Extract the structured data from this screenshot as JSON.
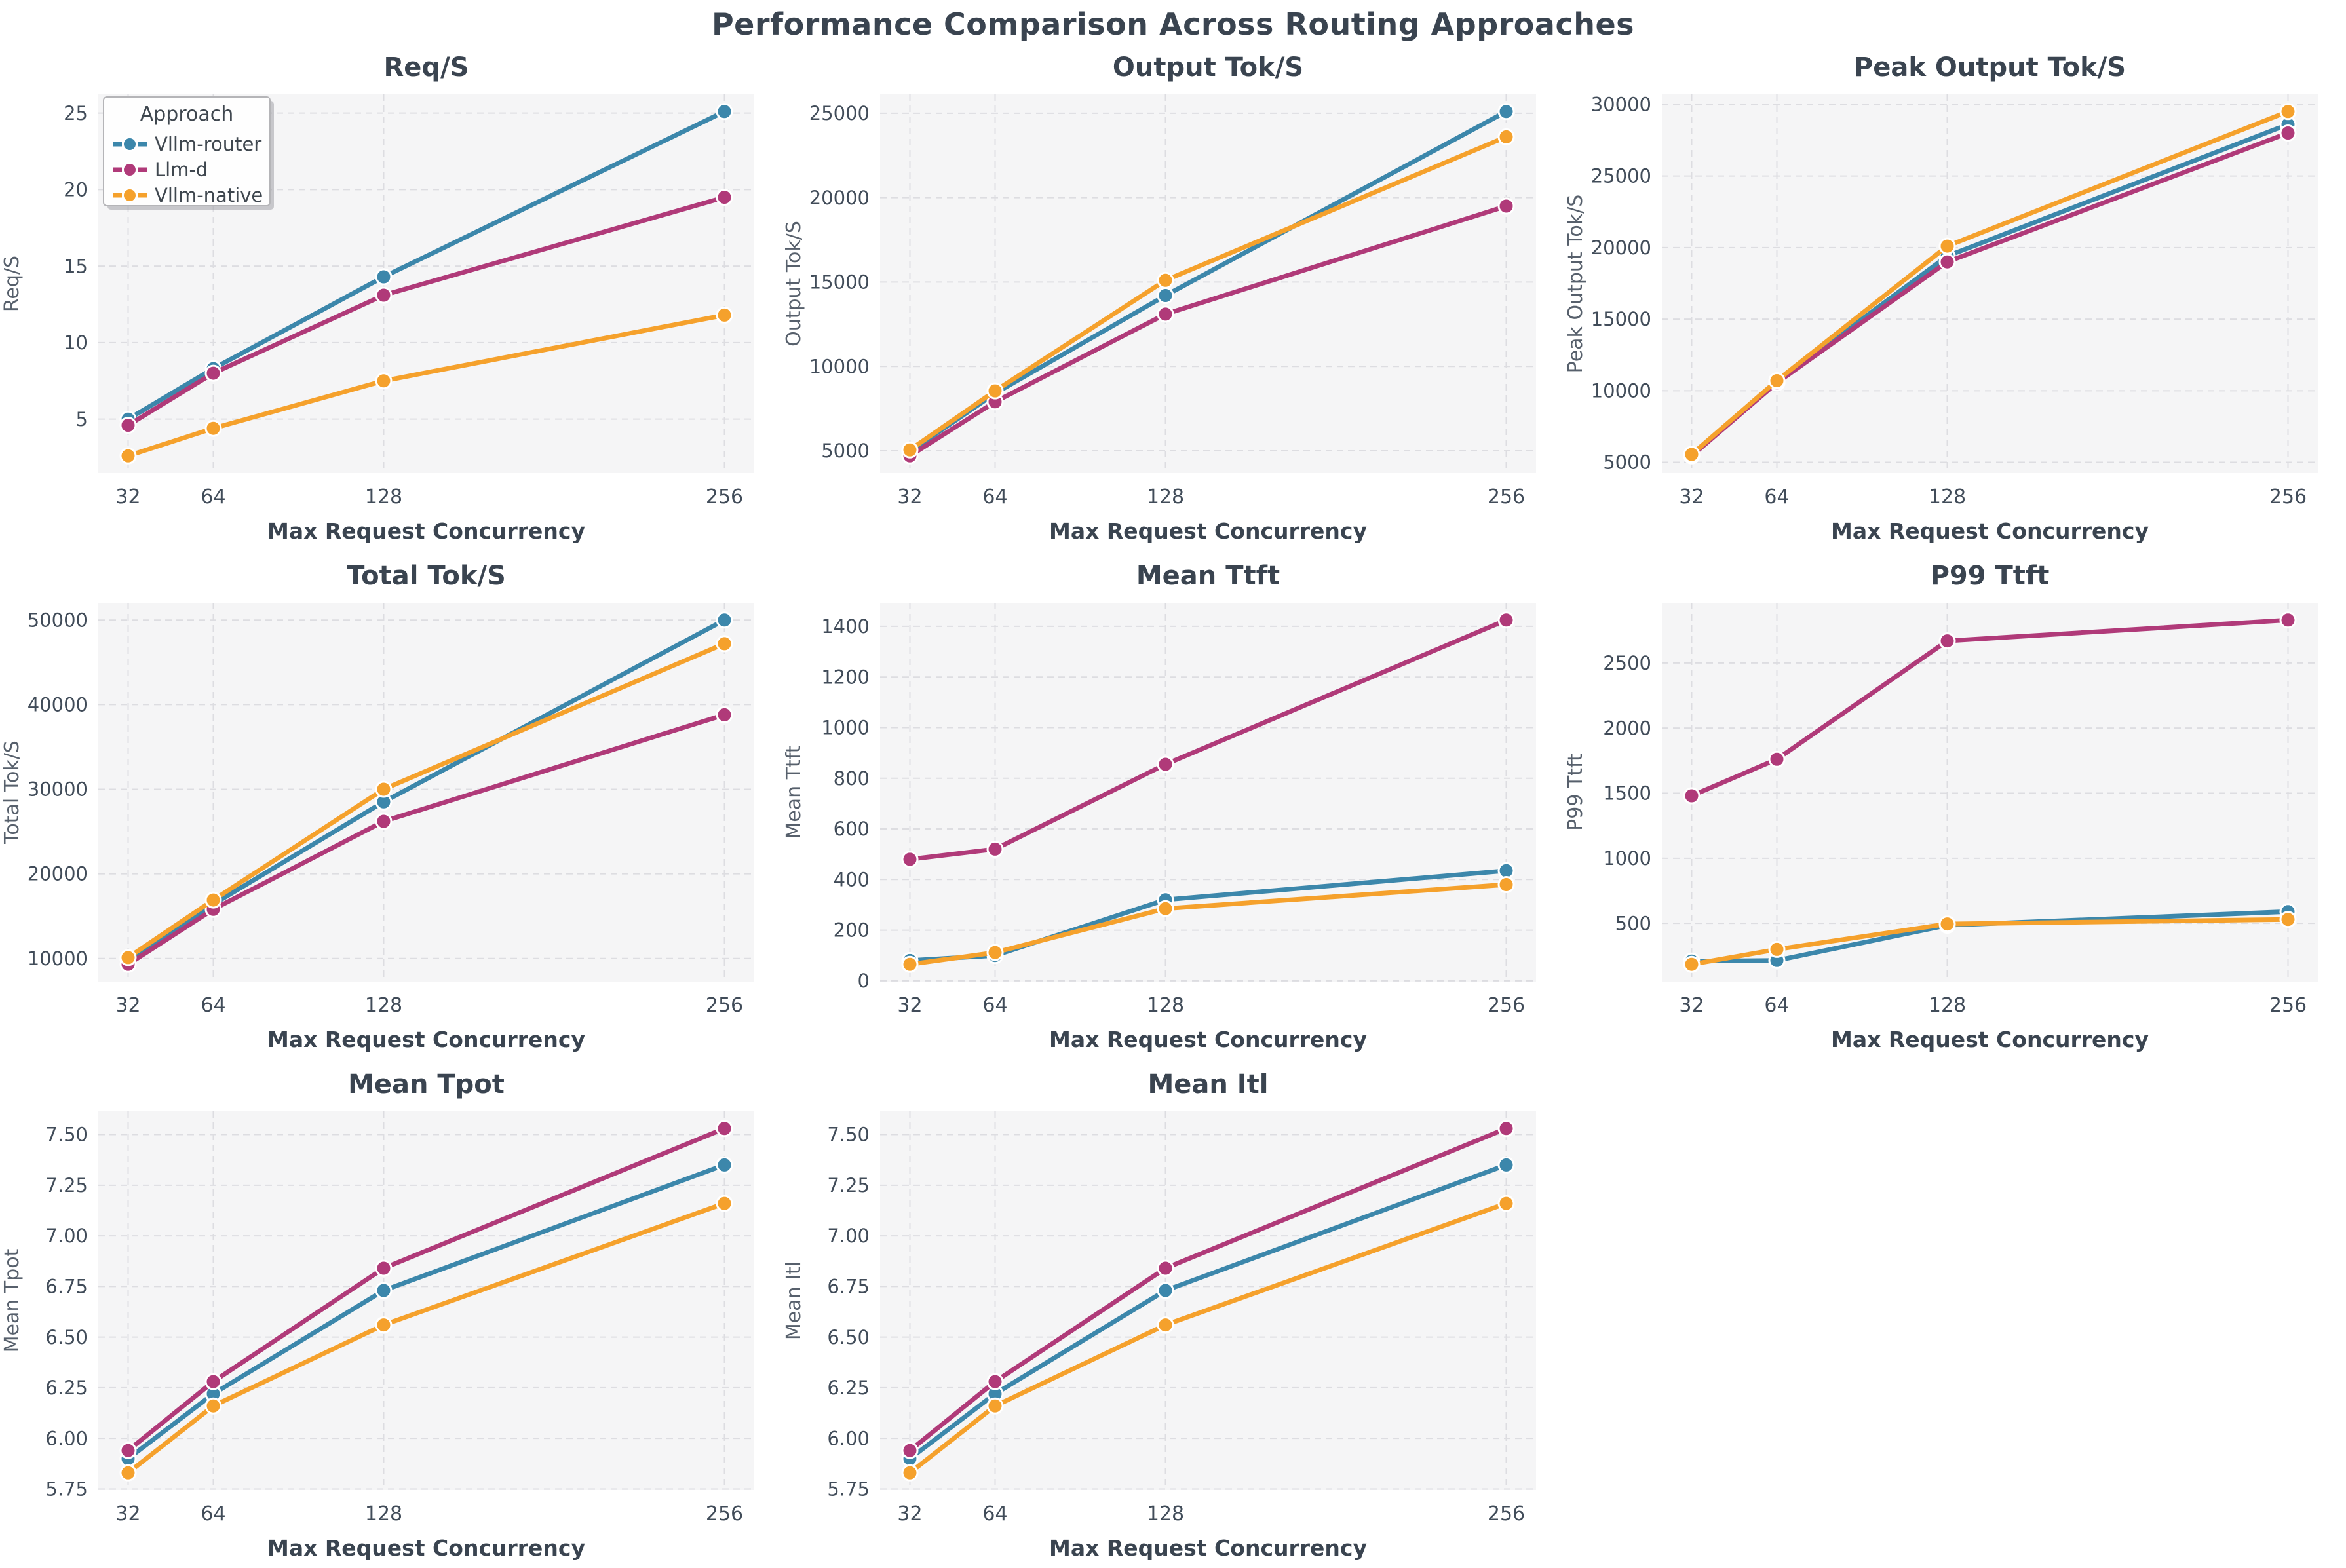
{
  "page_title": "Performance Comparison Across Routing Approaches",
  "legend": {
    "title": "Approach"
  },
  "x_axis": {
    "label": "Max Request Concurrency",
    "values": [
      32,
      64,
      128,
      256
    ],
    "tick_labels": [
      "32",
      "64",
      "128",
      "256"
    ]
  },
  "approaches": [
    {
      "name": "Vllm-router",
      "color": "#3c87ab"
    },
    {
      "name": "Llm-d",
      "color": "#b03a79"
    },
    {
      "name": "Vllm-native",
      "color": "#f5a12c"
    }
  ],
  "style_colors": {
    "title_text": "#3a4450",
    "tick_text": "#414c59",
    "axis_label_text": "#57606c",
    "plot_background": "#f5f5f6",
    "gridline": "#dddde1",
    "marker_edge": "#ffffff",
    "legend_border": "#b5b5b8",
    "legend_background": "#fefefe"
  },
  "chart_data": [
    {
      "id": "req-s",
      "type": "line",
      "title": "Req/S",
      "ylabel": "Req/S",
      "show_legend": true,
      "x": [
        32,
        64,
        128,
        256
      ],
      "ytick_values": [
        5,
        10,
        15,
        20,
        25
      ],
      "ytick_labels": [
        "5",
        "10",
        "15",
        "20",
        "25"
      ],
      "series": [
        {
          "name": "Vllm-router",
          "values": [
            5.0,
            8.3,
            14.3,
            25.1
          ]
        },
        {
          "name": "Llm-d",
          "values": [
            4.6,
            8.0,
            13.1,
            19.5
          ]
        },
        {
          "name": "Vllm-native",
          "values": [
            2.6,
            4.4,
            7.5,
            11.8
          ]
        }
      ]
    },
    {
      "id": "output-tok-s",
      "type": "line",
      "title": "Output Tok/S",
      "ylabel": "Output Tok/S",
      "show_legend": false,
      "x": [
        32,
        64,
        128,
        256
      ],
      "ytick_values": [
        5000,
        10000,
        15000,
        20000,
        25000
      ],
      "ytick_labels": [
        "5000",
        "10000",
        "15000",
        "20000",
        "25000"
      ],
      "series": [
        {
          "name": "Vllm-router",
          "values": [
            4950,
            8400,
            14200,
            25100
          ]
        },
        {
          "name": "Llm-d",
          "values": [
            4700,
            7900,
            13100,
            19500
          ]
        },
        {
          "name": "Vllm-native",
          "values": [
            5050,
            8550,
            15100,
            23600
          ]
        }
      ]
    },
    {
      "id": "peak-output-tok-s",
      "type": "line",
      "title": "Peak Output Tok/S",
      "ylabel": "Peak Output Tok/S",
      "show_legend": false,
      "x": [
        32,
        64,
        128,
        256
      ],
      "ytick_values": [
        5000,
        10000,
        15000,
        20000,
        25000,
        30000
      ],
      "ytick_labels": [
        "5000",
        "10000",
        "15000",
        "20000",
        "25000",
        "30000"
      ],
      "series": [
        {
          "name": "Vllm-router",
          "values": [
            5500,
            10600,
            19400,
            28600
          ]
        },
        {
          "name": "Llm-d",
          "values": [
            5450,
            10550,
            19000,
            28000
          ]
        },
        {
          "name": "Vllm-native",
          "values": [
            5550,
            10700,
            20100,
            29500
          ]
        }
      ]
    },
    {
      "id": "total-tok-s",
      "type": "line",
      "title": "Total Tok/S",
      "ylabel": "Total Tok/S",
      "show_legend": false,
      "x": [
        32,
        64,
        128,
        256
      ],
      "ytick_values": [
        10000,
        20000,
        30000,
        40000,
        50000
      ],
      "ytick_labels": [
        "10000",
        "20000",
        "30000",
        "40000",
        "50000"
      ],
      "series": [
        {
          "name": "Vllm-router",
          "values": [
            9900,
            16400,
            28500,
            50000
          ]
        },
        {
          "name": "Llm-d",
          "values": [
            9300,
            15800,
            26200,
            38800
          ]
        },
        {
          "name": "Vllm-native",
          "values": [
            10100,
            16900,
            30000,
            47200
          ]
        }
      ]
    },
    {
      "id": "mean-ttft",
      "type": "line",
      "title": "Mean Ttft",
      "ylabel": "Mean Ttft",
      "show_legend": false,
      "x": [
        32,
        64,
        128,
        256
      ],
      "ytick_values": [
        0,
        200,
        400,
        600,
        800,
        1000,
        1200,
        1400
      ],
      "ytick_labels": [
        "0",
        "200",
        "400",
        "600",
        "800",
        "1000",
        "1200",
        "1400"
      ],
      "series": [
        {
          "name": "Vllm-router",
          "values": [
            80,
            100,
            320,
            435
          ]
        },
        {
          "name": "Llm-d",
          "values": [
            480,
            520,
            855,
            1425
          ]
        },
        {
          "name": "Vllm-native",
          "values": [
            65,
            112,
            285,
            380
          ]
        }
      ]
    },
    {
      "id": "p99-ttft",
      "type": "line",
      "title": "P99 Ttft",
      "ylabel": "P99 Ttft",
      "show_legend": false,
      "x": [
        32,
        64,
        128,
        256
      ],
      "ytick_values": [
        500,
        1000,
        1500,
        2000,
        2500
      ],
      "ytick_labels": [
        "500",
        "1000",
        "1500",
        "2000",
        "2500"
      ],
      "series": [
        {
          "name": "Vllm-router",
          "values": [
            210,
            215,
            485,
            590
          ]
        },
        {
          "name": "Llm-d",
          "values": [
            1480,
            1760,
            2670,
            2830
          ]
        },
        {
          "name": "Vllm-native",
          "values": [
            185,
            300,
            495,
            530
          ]
        }
      ]
    },
    {
      "id": "mean-tpot",
      "type": "line",
      "title": "Mean Tpot",
      "ylabel": "Mean Tpot",
      "show_legend": false,
      "x": [
        32,
        64,
        128,
        256
      ],
      "ytick_values": [
        5.75,
        6.0,
        6.25,
        6.5,
        6.75,
        7.0,
        7.25,
        7.5
      ],
      "ytick_labels": [
        "5.75",
        "6.00",
        "6.25",
        "6.50",
        "6.75",
        "7.00",
        "7.25",
        "7.50"
      ],
      "series": [
        {
          "name": "Vllm-router",
          "values": [
            5.9,
            6.22,
            6.73,
            7.35
          ]
        },
        {
          "name": "Llm-d",
          "values": [
            5.94,
            6.28,
            6.84,
            7.53
          ]
        },
        {
          "name": "Vllm-native",
          "values": [
            5.83,
            6.16,
            6.56,
            7.16
          ]
        }
      ]
    },
    {
      "id": "mean-itl",
      "type": "line",
      "title": "Mean Itl",
      "ylabel": "Mean Itl",
      "show_legend": false,
      "x": [
        32,
        64,
        128,
        256
      ],
      "ytick_values": [
        5.75,
        6.0,
        6.25,
        6.5,
        6.75,
        7.0,
        7.25,
        7.5
      ],
      "ytick_labels": [
        "5.75",
        "6.00",
        "6.25",
        "6.50",
        "6.75",
        "7.00",
        "7.25",
        "7.50"
      ],
      "series": [
        {
          "name": "Vllm-router",
          "values": [
            5.9,
            6.22,
            6.73,
            7.35
          ]
        },
        {
          "name": "Llm-d",
          "values": [
            5.94,
            6.28,
            6.84,
            7.53
          ]
        },
        {
          "name": "Vllm-native",
          "values": [
            5.83,
            6.16,
            6.56,
            7.16
          ]
        }
      ]
    }
  ]
}
